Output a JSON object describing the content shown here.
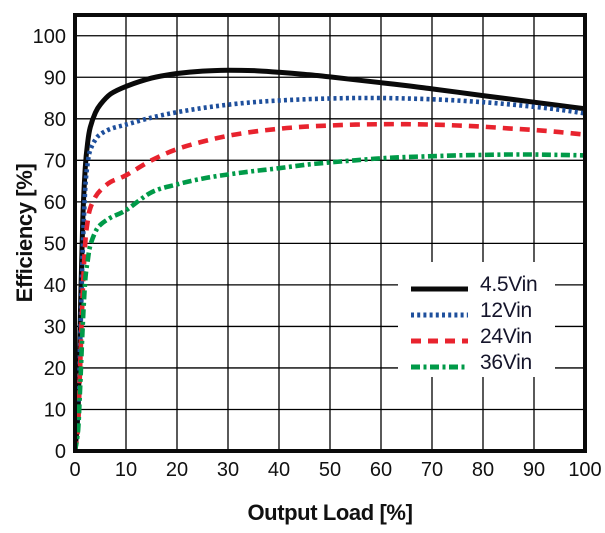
{
  "figure": {
    "xlabel": "Output Load [%]",
    "ylabel": "Efficiency [%]"
  },
  "chart_data": {
    "type": "line",
    "title": "",
    "xlabel": "Output Load [%]",
    "ylabel": "Efficiency [%]",
    "xlim": [
      0,
      100
    ],
    "ylim": [
      0,
      105
    ],
    "x_ticks": [
      0,
      10,
      20,
      30,
      40,
      50,
      60,
      70,
      80,
      90,
      100
    ],
    "y_ticks": [
      0,
      10,
      20,
      30,
      40,
      50,
      60,
      70,
      80,
      90,
      100
    ],
    "grid": true,
    "legend_position": "inside lower-right",
    "frame_color": "#0a0a0a",
    "grid_color": "#000000",
    "text_color": "#111111",
    "series": [
      {
        "name": "4.5Vin",
        "color": "#0a0a0a",
        "style": "solid",
        "dash": "",
        "width": 5,
        "points": [
          [
            0,
            0
          ],
          [
            0.6,
            10
          ],
          [
            1,
            30
          ],
          [
            1.5,
            55
          ],
          [
            2,
            68
          ],
          [
            2.5,
            74.5
          ],
          [
            3,
            78
          ],
          [
            4,
            81.5
          ],
          [
            5,
            83.5
          ],
          [
            7,
            86
          ],
          [
            10,
            87.8
          ],
          [
            15,
            89.8
          ],
          [
            20,
            90.9
          ],
          [
            25,
            91.5
          ],
          [
            30,
            91.7
          ],
          [
            35,
            91.6
          ],
          [
            40,
            91.2
          ],
          [
            45,
            90.7
          ],
          [
            50,
            90.1
          ],
          [
            55,
            89.4
          ],
          [
            60,
            88.7
          ],
          [
            65,
            88
          ],
          [
            70,
            87.2
          ],
          [
            75,
            86.4
          ],
          [
            80,
            85.6
          ],
          [
            85,
            84.8
          ],
          [
            90,
            84
          ],
          [
            95,
            83.2
          ],
          [
            100,
            82.4
          ]
        ]
      },
      {
        "name": "12Vin",
        "color": "#1e4f9c",
        "style": "dotted",
        "dash": "3 3.2",
        "width": 4.6,
        "points": [
          [
            0,
            0
          ],
          [
            0.6,
            8
          ],
          [
            1,
            25
          ],
          [
            1.5,
            48
          ],
          [
            2,
            63
          ],
          [
            2.5,
            69.5
          ],
          [
            3,
            72.5
          ],
          [
            4,
            75
          ],
          [
            5,
            76.3
          ],
          [
            7,
            77.6
          ],
          [
            10,
            78.6
          ],
          [
            15,
            80.3
          ],
          [
            20,
            81.6
          ],
          [
            25,
            82.6
          ],
          [
            30,
            83.4
          ],
          [
            35,
            84
          ],
          [
            40,
            84.4
          ],
          [
            45,
            84.7
          ],
          [
            50,
            84.9
          ],
          [
            55,
            85
          ],
          [
            60,
            85
          ],
          [
            65,
            84.9
          ],
          [
            70,
            84.7
          ],
          [
            75,
            84.4
          ],
          [
            80,
            84
          ],
          [
            85,
            83.5
          ],
          [
            90,
            82.9
          ],
          [
            95,
            82.2
          ],
          [
            100,
            81.3
          ]
        ]
      },
      {
        "name": "24Vin",
        "color": "#e8232e",
        "style": "dashed",
        "dash": "10 7",
        "width": 4.6,
        "points": [
          [
            0,
            0
          ],
          [
            0.6,
            6
          ],
          [
            1,
            20
          ],
          [
            1.5,
            38
          ],
          [
            2,
            50
          ],
          [
            2.5,
            55.5
          ],
          [
            3,
            58.5
          ],
          [
            4,
            61.2
          ],
          [
            5,
            62.8
          ],
          [
            7,
            64.8
          ],
          [
            10,
            66.4
          ],
          [
            15,
            70
          ],
          [
            20,
            72.7
          ],
          [
            25,
            74.5
          ],
          [
            30,
            75.9
          ],
          [
            35,
            76.9
          ],
          [
            40,
            77.6
          ],
          [
            45,
            78.1
          ],
          [
            50,
            78.4
          ],
          [
            55,
            78.6
          ],
          [
            60,
            78.7
          ],
          [
            65,
            78.7
          ],
          [
            70,
            78.6
          ],
          [
            75,
            78.4
          ],
          [
            80,
            78.1
          ],
          [
            85,
            77.7
          ],
          [
            90,
            77.3
          ],
          [
            95,
            76.8
          ],
          [
            100,
            76.2
          ]
        ]
      },
      {
        "name": "36Vin",
        "color": "#009a48",
        "style": "dash-dot",
        "dash": "9 3.5 3 3.5",
        "width": 4.6,
        "points": [
          [
            0,
            0
          ],
          [
            0.6,
            5
          ],
          [
            1,
            15
          ],
          [
            1.5,
            30
          ],
          [
            2,
            41
          ],
          [
            2.5,
            46
          ],
          [
            3,
            49.5
          ],
          [
            4,
            52.8
          ],
          [
            5,
            54.5
          ],
          [
            7,
            56.2
          ],
          [
            10,
            58
          ],
          [
            15,
            62.3
          ],
          [
            20,
            64.2
          ],
          [
            25,
            65.6
          ],
          [
            30,
            66.6
          ],
          [
            35,
            67.4
          ],
          [
            40,
            68.1
          ],
          [
            45,
            68.9
          ],
          [
            50,
            69.5
          ],
          [
            55,
            70
          ],
          [
            60,
            70.5
          ],
          [
            65,
            70.8
          ],
          [
            70,
            71
          ],
          [
            75,
            71.2
          ],
          [
            80,
            71.3
          ],
          [
            85,
            71.4
          ],
          [
            90,
            71.4
          ],
          [
            95,
            71.3
          ],
          [
            100,
            71.2
          ]
        ]
      }
    ]
  }
}
